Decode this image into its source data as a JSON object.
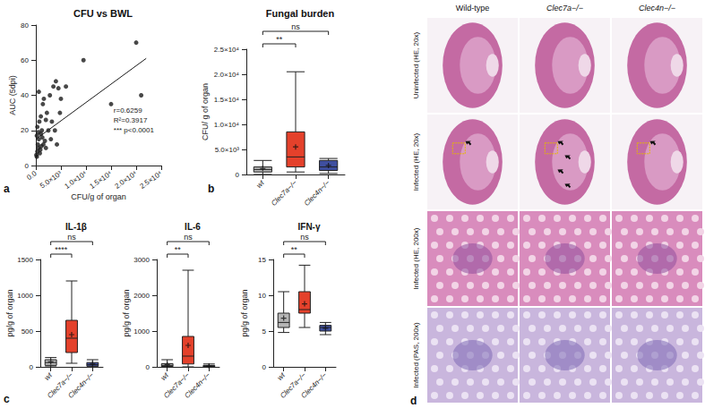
{
  "chart_data": [
    {
      "type": "scatter",
      "panel": "a",
      "title": "CFU vs BWL",
      "x_label": "CFU/g of organ",
      "y_label": "AUC (5dpi)",
      "x": [
        200,
        300,
        500,
        400,
        600,
        800,
        1000,
        1200,
        300,
        700,
        1500,
        1800,
        2000,
        2200,
        2500,
        100,
        900,
        1100,
        1300,
        1600,
        600,
        1400,
        2800,
        3000,
        3200,
        3500,
        4000,
        4200,
        4500,
        4800,
        5000,
        2000,
        1000,
        200,
        500,
        3800,
        9500,
        15000,
        20000,
        21000,
        6000
      ],
      "values": [
        5,
        8,
        10,
        12,
        15,
        7,
        18,
        20,
        22,
        25,
        12,
        14,
        10,
        30,
        20,
        6,
        9,
        11,
        16,
        38,
        42,
        35,
        40,
        15,
        25,
        45,
        48,
        12,
        44,
        30,
        38,
        26,
        28,
        17,
        19,
        20,
        60,
        35,
        70,
        40,
        45
      ],
      "fit": {
        "x": [
          0,
          22000
        ],
        "y": [
          15,
          61
        ]
      },
      "annotations": [
        "r=0.6259",
        "R²=0.3917",
        "*** p<0.0001"
      ],
      "color": "#1a1a1a",
      "marker": "circle",
      "xlim": [
        0,
        25000
      ],
      "xticks": [
        {
          "value": 0,
          "label": "0.0"
        },
        {
          "value": 5000,
          "label": "5.0×10³"
        },
        {
          "value": 10000,
          "label": "1.0×10⁴"
        },
        {
          "value": 15000,
          "label": "1.5×10⁴"
        },
        {
          "value": 20000,
          "label": "2.0×10⁴"
        },
        {
          "value": 25000,
          "label": "2.5×10⁴"
        }
      ],
      "ylim": [
        0,
        80
      ],
      "yticks": [
        0,
        20,
        40,
        60,
        80
      ],
      "grid": false
    },
    {
      "type": "boxplot",
      "panel": "b",
      "title": "Fungal burden",
      "y_label": "CFU/ g of organ",
      "categories": [
        "wt",
        "Clec7a−/−",
        "Clec4n−/−"
      ],
      "colors": [
        "#b5b5b5",
        "#e4412b",
        "#3f4f9f"
      ],
      "boxes": [
        [
          0,
          500,
          1000,
          1500,
          2800
        ],
        [
          500,
          1500,
          3500,
          8500,
          20500
        ],
        [
          200,
          800,
          1500,
          2800,
          3200
        ]
      ],
      "means": [
        1200,
        5500,
        1800
      ],
      "comparisons": [
        {
          "from": "wt",
          "to": "Clec7a−/−",
          "label": "**"
        },
        {
          "from": "wt",
          "to": "Clec4n−/−",
          "label": "ns"
        }
      ],
      "ylim": [
        0,
        25000
      ],
      "yticks": [
        0,
        {
          "value": 5000,
          "label": "5.0×10³"
        },
        {
          "value": 10000,
          "label": "1.0×10⁴"
        },
        {
          "value": 15000,
          "label": "1.5×10⁴"
        },
        {
          "value": 20000,
          "label": "2.0×10⁴"
        },
        {
          "value": 25000,
          "label": "2.5×10⁴"
        }
      ],
      "grid": false
    },
    {
      "type": "boxplot",
      "panel": "c",
      "title": "IL-1β",
      "y_label": "pg/g of organ",
      "categories": [
        "wt",
        "Clec7a−/−",
        "Clec4n−/−"
      ],
      "colors": [
        "#b5b5b5",
        "#e4412b",
        "#3f4f9f"
      ],
      "boxes": [
        [
          0,
          20,
          60,
          100,
          130
        ],
        [
          50,
          200,
          400,
          650,
          1200
        ],
        [
          0,
          10,
          30,
          60,
          100
        ]
      ],
      "means": [
        70,
        450,
        40
      ],
      "comparisons": [
        {
          "from": "wt",
          "to": "Clec7a−/−",
          "label": "****"
        },
        {
          "from": "wt",
          "to": "Clec4n−/−",
          "label": "ns"
        }
      ],
      "ylim": [
        0,
        1500
      ],
      "yticks": [
        0,
        500,
        1000,
        1500
      ],
      "grid": false
    },
    {
      "type": "boxplot",
      "title": "IL-6",
      "y_label": "pg/g of organ",
      "categories": [
        "wt",
        "Clec7a−/−",
        "Clec4n−/−"
      ],
      "colors": [
        "#b5b5b5",
        "#e4412b",
        "#3f4f9f"
      ],
      "boxes": [
        [
          0,
          10,
          40,
          90,
          200
        ],
        [
          0,
          80,
          300,
          850,
          2700
        ],
        [
          0,
          5,
          20,
          40,
          80
        ]
      ],
      "means": [
        60,
        600,
        25
      ],
      "comparisons": [
        {
          "from": "wt",
          "to": "Clec7a−/−",
          "label": "**"
        },
        {
          "from": "wt",
          "to": "Clec4n−/−",
          "label": "ns"
        }
      ],
      "ylim": [
        0,
        3000
      ],
      "yticks": [
        0,
        1000,
        2000,
        3000
      ],
      "grid": false
    },
    {
      "type": "boxplot",
      "title": "IFN-γ",
      "y_label": "pg/g of organ",
      "categories": [
        "wt",
        "Clec7a−/−",
        "Clec4n−/−"
      ],
      "colors": [
        "#b5b5b5",
        "#e4412b",
        "#3f4f9f"
      ],
      "boxes": [
        [
          4.8,
          5.5,
          6.2,
          7.5,
          10.5
        ],
        [
          5.5,
          7.5,
          8,
          10.5,
          14.2
        ],
        [
          4.5,
          5,
          5.5,
          5.8,
          6.2
        ]
      ],
      "means": [
        6.8,
        8.8,
        5.4
      ],
      "comparisons": [
        {
          "from": "wt",
          "to": "Clec7a−/−",
          "label": "**"
        },
        {
          "from": "wt",
          "to": "Clec4n−/−",
          "label": "ns"
        }
      ],
      "ylim": [
        0,
        15
      ],
      "yticks": [
        0,
        5,
        10,
        15
      ],
      "grid": false
    }
  ],
  "histology": {
    "panel": "d",
    "columns": [
      "Wild-type",
      "Clec7a−/−",
      "Clec4n−/−"
    ],
    "rows": [
      "Uninfected (HE, 20x)",
      "Infected (HE, 20x)",
      "Infected (HE, 200x)",
      "Infected (PAS, 200x)"
    ]
  }
}
